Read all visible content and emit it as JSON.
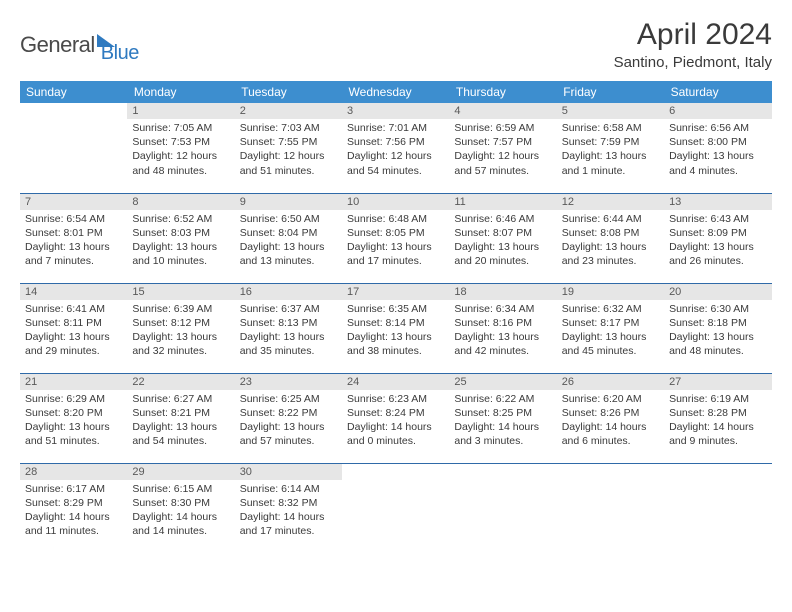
{
  "logo": {
    "text1": "General",
    "text2": "Blue"
  },
  "title": "April 2024",
  "location": "Santino, Piedmont, Italy",
  "colors": {
    "header_bg": "#3d8ecf",
    "header_text": "#ffffff",
    "row_border": "#2f6aa8",
    "daynum_bg": "#e6e6e6",
    "daynum_text": "#595959",
    "body_text": "#3a3a3a",
    "logo_gray": "#4a4a4a",
    "logo_blue": "#2f7ac0"
  },
  "weekdays": [
    "Sunday",
    "Monday",
    "Tuesday",
    "Wednesday",
    "Thursday",
    "Friday",
    "Saturday"
  ],
  "grid": [
    [
      {
        "empty": true
      },
      {
        "n": "1",
        "sr": "7:05 AM",
        "ss": "7:53 PM",
        "dl": "12 hours and 48 minutes."
      },
      {
        "n": "2",
        "sr": "7:03 AM",
        "ss": "7:55 PM",
        "dl": "12 hours and 51 minutes."
      },
      {
        "n": "3",
        "sr": "7:01 AM",
        "ss": "7:56 PM",
        "dl": "12 hours and 54 minutes."
      },
      {
        "n": "4",
        "sr": "6:59 AM",
        "ss": "7:57 PM",
        "dl": "12 hours and 57 minutes."
      },
      {
        "n": "5",
        "sr": "6:58 AM",
        "ss": "7:59 PM",
        "dl": "13 hours and 1 minute."
      },
      {
        "n": "6",
        "sr": "6:56 AM",
        "ss": "8:00 PM",
        "dl": "13 hours and 4 minutes."
      }
    ],
    [
      {
        "n": "7",
        "sr": "6:54 AM",
        "ss": "8:01 PM",
        "dl": "13 hours and 7 minutes."
      },
      {
        "n": "8",
        "sr": "6:52 AM",
        "ss": "8:03 PM",
        "dl": "13 hours and 10 minutes."
      },
      {
        "n": "9",
        "sr": "6:50 AM",
        "ss": "8:04 PM",
        "dl": "13 hours and 13 minutes."
      },
      {
        "n": "10",
        "sr": "6:48 AM",
        "ss": "8:05 PM",
        "dl": "13 hours and 17 minutes."
      },
      {
        "n": "11",
        "sr": "6:46 AM",
        "ss": "8:07 PM",
        "dl": "13 hours and 20 minutes."
      },
      {
        "n": "12",
        "sr": "6:44 AM",
        "ss": "8:08 PM",
        "dl": "13 hours and 23 minutes."
      },
      {
        "n": "13",
        "sr": "6:43 AM",
        "ss": "8:09 PM",
        "dl": "13 hours and 26 minutes."
      }
    ],
    [
      {
        "n": "14",
        "sr": "6:41 AM",
        "ss": "8:11 PM",
        "dl": "13 hours and 29 minutes."
      },
      {
        "n": "15",
        "sr": "6:39 AM",
        "ss": "8:12 PM",
        "dl": "13 hours and 32 minutes."
      },
      {
        "n": "16",
        "sr": "6:37 AM",
        "ss": "8:13 PM",
        "dl": "13 hours and 35 minutes."
      },
      {
        "n": "17",
        "sr": "6:35 AM",
        "ss": "8:14 PM",
        "dl": "13 hours and 38 minutes."
      },
      {
        "n": "18",
        "sr": "6:34 AM",
        "ss": "8:16 PM",
        "dl": "13 hours and 42 minutes."
      },
      {
        "n": "19",
        "sr": "6:32 AM",
        "ss": "8:17 PM",
        "dl": "13 hours and 45 minutes."
      },
      {
        "n": "20",
        "sr": "6:30 AM",
        "ss": "8:18 PM",
        "dl": "13 hours and 48 minutes."
      }
    ],
    [
      {
        "n": "21",
        "sr": "6:29 AM",
        "ss": "8:20 PM",
        "dl": "13 hours and 51 minutes."
      },
      {
        "n": "22",
        "sr": "6:27 AM",
        "ss": "8:21 PM",
        "dl": "13 hours and 54 minutes."
      },
      {
        "n": "23",
        "sr": "6:25 AM",
        "ss": "8:22 PM",
        "dl": "13 hours and 57 minutes."
      },
      {
        "n": "24",
        "sr": "6:23 AM",
        "ss": "8:24 PM",
        "dl": "14 hours and 0 minutes."
      },
      {
        "n": "25",
        "sr": "6:22 AM",
        "ss": "8:25 PM",
        "dl": "14 hours and 3 minutes."
      },
      {
        "n": "26",
        "sr": "6:20 AM",
        "ss": "8:26 PM",
        "dl": "14 hours and 6 minutes."
      },
      {
        "n": "27",
        "sr": "6:19 AM",
        "ss": "8:28 PM",
        "dl": "14 hours and 9 minutes."
      }
    ],
    [
      {
        "n": "28",
        "sr": "6:17 AM",
        "ss": "8:29 PM",
        "dl": "14 hours and 11 minutes."
      },
      {
        "n": "29",
        "sr": "6:15 AM",
        "ss": "8:30 PM",
        "dl": "14 hours and 14 minutes."
      },
      {
        "n": "30",
        "sr": "6:14 AM",
        "ss": "8:32 PM",
        "dl": "14 hours and 17 minutes."
      },
      {
        "empty": true
      },
      {
        "empty": true
      },
      {
        "empty": true
      },
      {
        "empty": true
      }
    ]
  ],
  "labels": {
    "sunrise": "Sunrise: ",
    "sunset": "Sunset: ",
    "daylight": "Daylight: "
  }
}
